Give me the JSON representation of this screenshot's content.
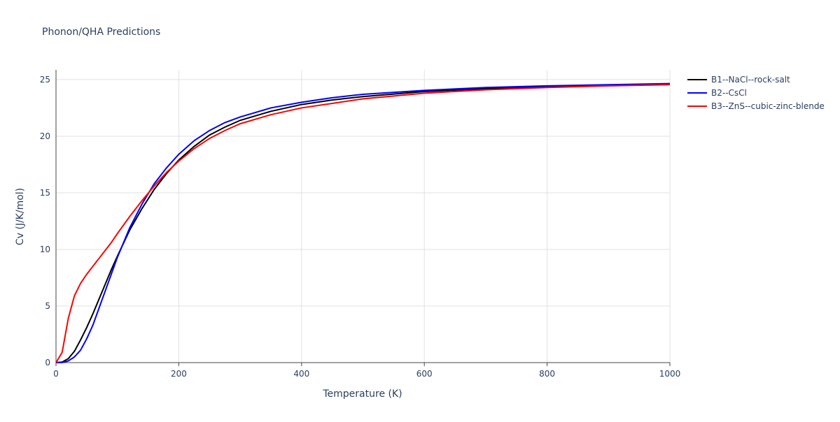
{
  "chart_data": {
    "type": "line",
    "title": "Phonon/QHA Predictions",
    "x_label": "Temperature (K)",
    "y_label": "Cv (J/K/mol)",
    "x": [
      0,
      10,
      20,
      30,
      40,
      50,
      60,
      70,
      80,
      90,
      100,
      120,
      140,
      160,
      180,
      200,
      225,
      250,
      275,
      300,
      350,
      400,
      450,
      500,
      600,
      700,
      800,
      900,
      1000
    ],
    "series": [
      {
        "name": "B1--NaCl--rock-salt",
        "color": "#000000",
        "values": [
          0,
          0.05,
          0.35,
          1.0,
          2.0,
          3.1,
          4.3,
          5.6,
          6.9,
          8.2,
          9.4,
          11.7,
          13.6,
          15.3,
          16.7,
          17.9,
          19.1,
          20.1,
          20.8,
          21.4,
          22.2,
          22.8,
          23.2,
          23.5,
          23.95,
          24.2,
          24.4,
          24.5,
          24.6
        ]
      },
      {
        "name": "B2--CsCl",
        "color": "#0000ff",
        "values": [
          0,
          0.01,
          0.15,
          0.5,
          1.1,
          2.1,
          3.3,
          4.8,
          6.3,
          7.8,
          9.3,
          11.9,
          14.0,
          15.8,
          17.2,
          18.4,
          19.6,
          20.5,
          21.2,
          21.7,
          22.5,
          23.0,
          23.4,
          23.7,
          24.05,
          24.3,
          24.45,
          24.55,
          24.65
        ]
      },
      {
        "name": "B3--ZnS--cubic-zinc-blende",
        "color": "#ff0000",
        "values": [
          0,
          0.9,
          3.9,
          5.9,
          7.0,
          7.8,
          8.5,
          9.2,
          9.9,
          10.6,
          11.4,
          12.9,
          14.3,
          15.6,
          16.8,
          17.8,
          18.9,
          19.8,
          20.5,
          21.1,
          21.9,
          22.5,
          22.9,
          23.3,
          23.8,
          24.1,
          24.3,
          24.45,
          24.55
        ]
      }
    ],
    "xlim": [
      0,
      1000
    ],
    "xticks": [
      0,
      200,
      400,
      600,
      800,
      1000
    ],
    "ylim": [
      0,
      25.86
    ],
    "yticks": [
      0,
      5,
      10,
      15,
      20,
      25
    ],
    "grid": true,
    "legend": "right"
  }
}
